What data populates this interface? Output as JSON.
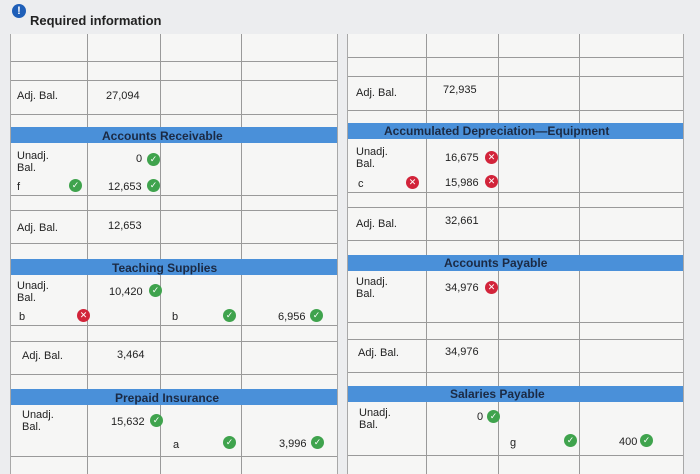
{
  "header": {
    "title": "Required information",
    "alert_glyph": "!"
  },
  "icons": {
    "check": "✓",
    "x": "✕"
  },
  "left": {
    "top_block": {
      "adj_label": "Adj. Bal.",
      "adj_value": "27,094"
    },
    "accounts_receivable": {
      "title": "Accounts Receivable",
      "unadj_label": "Unadj.\nBal.",
      "unadj_value": "0",
      "entry_label": "f",
      "entry_value": "12,653",
      "adj_label": "Adj. Bal.",
      "adj_value": "12,653"
    },
    "teaching_supplies": {
      "title": "Teaching Supplies",
      "unadj_label": "Unadj.\nBal.",
      "unadj_value": "10,420",
      "entry_label": "b",
      "entry_label_credit": "b",
      "credit_value": "6,956",
      "adj_label": "Adj. Bal.",
      "adj_value": "3,464"
    },
    "prepaid_insurance": {
      "title": "Prepaid Insurance",
      "unadj_label": "Unadj.\nBal.",
      "unadj_value": "15,632",
      "entry_label_credit": "a",
      "credit_value": "3,996"
    }
  },
  "right": {
    "top_block": {
      "adj_label": "Adj. Bal.",
      "adj_value": "72,935"
    },
    "accumulated_depreciation": {
      "title": "Accumulated Depreciation—Equipment",
      "unadj_label": "Unadj.\nBal.",
      "unadj_value": "16,675",
      "entry_label": "c",
      "entry_value": "15,986",
      "adj_label": "Adj. Bal.",
      "adj_value": "32,661"
    },
    "accounts_payable": {
      "title": "Accounts Payable",
      "unadj_label": "Unadj.\nBal.",
      "unadj_value": "34,976",
      "adj_label": "Adj. Bal.",
      "adj_value": "34,976"
    },
    "salaries_payable": {
      "title": "Salaries Payable",
      "unadj_label": "Unadj.\nBal.",
      "unadj_value": "0",
      "entry_label_credit": "g",
      "credit_value": "400"
    }
  }
}
